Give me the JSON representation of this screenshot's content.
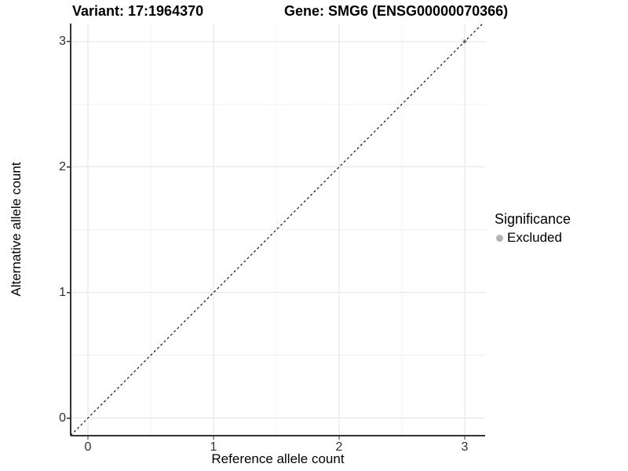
{
  "titles": {
    "variant": "Variant: 17:1964370",
    "gene": "Gene: SMG6 (ENSG00000070366)"
  },
  "chart_data": {
    "type": "scatter",
    "xlabel": "Reference allele count",
    "ylabel": "Alternative allele count",
    "xlim": [
      -0.1375,
      3.1625
    ],
    "ylim": [
      -0.14,
      3.1425
    ],
    "x_ticks": [
      0,
      1,
      2,
      3
    ],
    "y_ticks": [
      0,
      1,
      2,
      3
    ],
    "x_minor_ticks": [
      0.5,
      1.5,
      2.5
    ],
    "y_minor_ticks": [
      0.5,
      1.5,
      2.5
    ],
    "grid": true,
    "series": [
      {
        "name": "Excluded",
        "color": "#b3b3b3",
        "points": [
          {
            "x": 3,
            "y": 3
          }
        ]
      }
    ],
    "identity_line": {
      "slope": 1,
      "intercept": 0,
      "style": "dashed",
      "color": "#000000"
    },
    "legend": {
      "title": "Significance",
      "position": "right",
      "items": [
        {
          "label": "Excluded",
          "color": "#b3b3b3",
          "marker": "circle"
        }
      ]
    },
    "colors": {
      "grid_major": "#e3e3e3",
      "grid_minor": "#f0f0f0",
      "axis": "#333333",
      "background": "#ffffff"
    }
  }
}
